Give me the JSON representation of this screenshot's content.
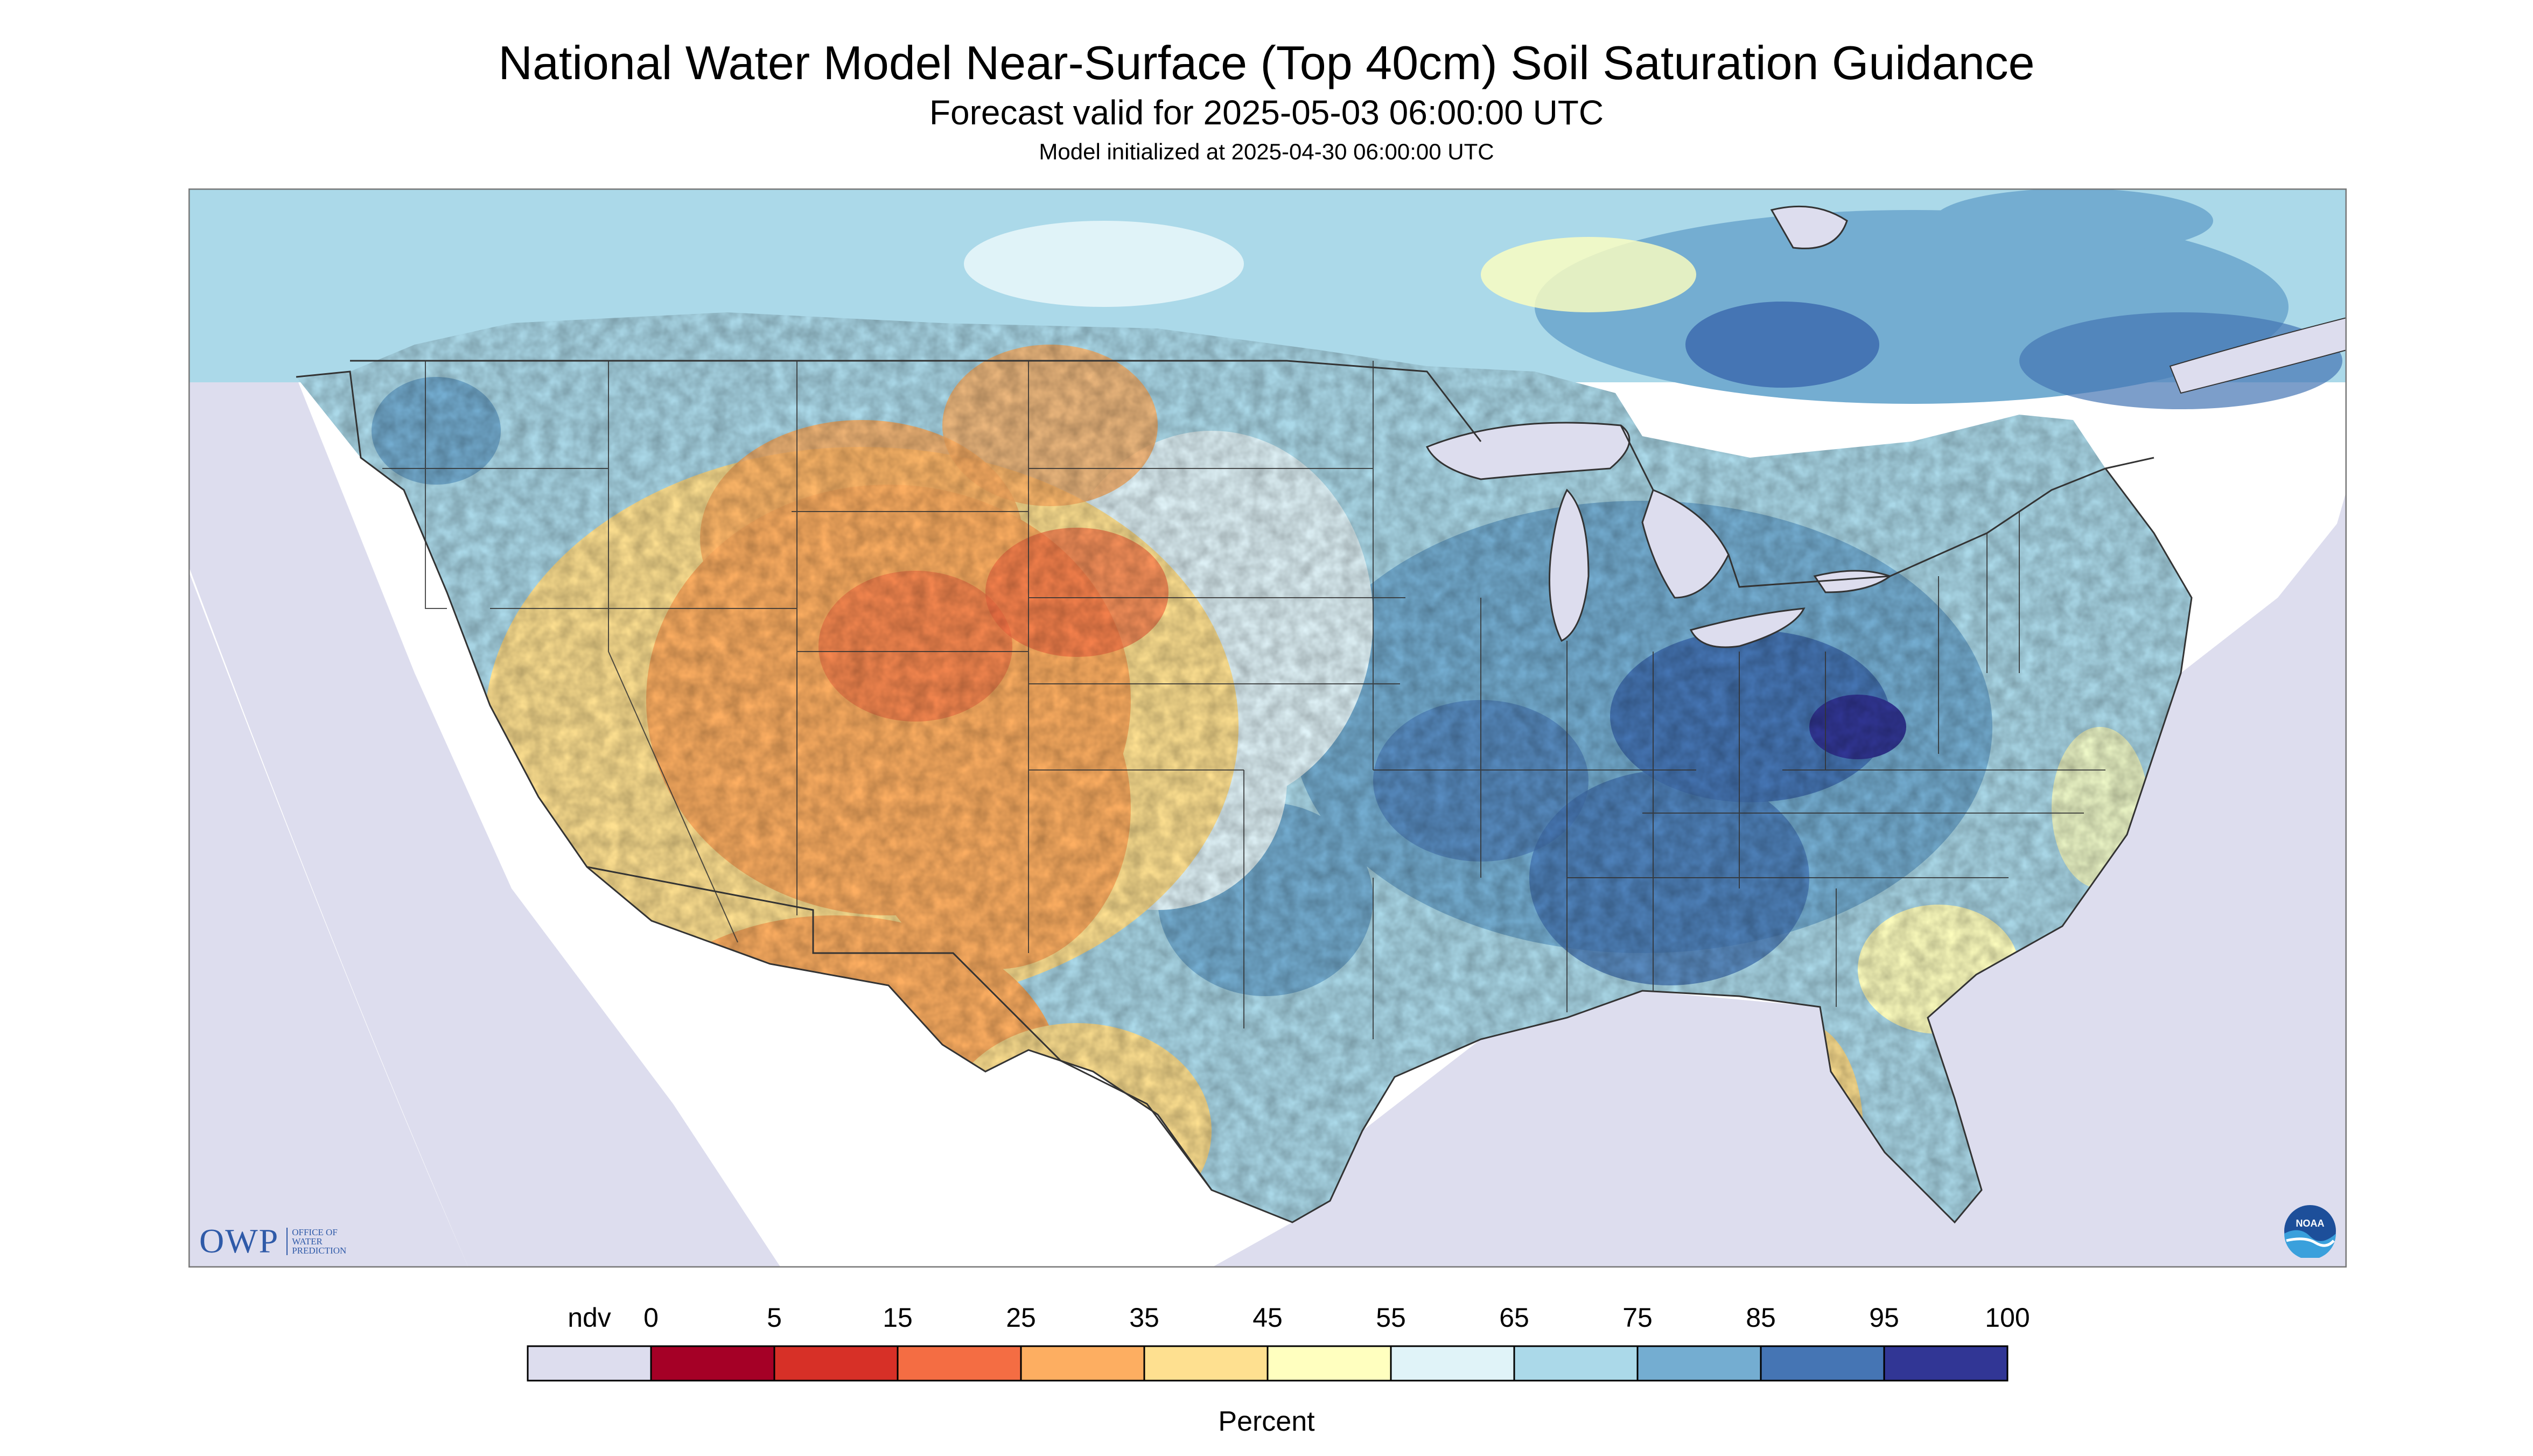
{
  "header": {
    "title": "National Water Model Near-Surface (Top 40cm) Soil Saturation Guidance",
    "subtitle": "Forecast valid for 2025-05-03 06:00:00 UTC",
    "init_line": "Model initialized at 2025-04-30 06:00:00 UTC"
  },
  "logos": {
    "owp_letters": "OWP",
    "owp_line1": "OFFICE OF",
    "owp_line2": "WATER",
    "owp_line3": "PREDICTION",
    "noaa_text": "NOAA"
  },
  "legend": {
    "ndv_label": "ndv",
    "ticks": [
      "0",
      "5",
      "15",
      "25",
      "35",
      "45",
      "55",
      "65",
      "75",
      "85",
      "95",
      "100"
    ],
    "colors": [
      "#ddddee",
      "#a50026",
      "#d73027",
      "#f46d43",
      "#fdae61",
      "#fee090",
      "#ffffbf",
      "#e0f3f8",
      "#abd9e9",
      "#74add1",
      "#4575b4",
      "#313695"
    ],
    "units": "Percent"
  },
  "map": {
    "projection": "Lambert conformal conic",
    "region": "Contiguous United States",
    "ndv_color": "#ddddee",
    "water_color": "#ddddee",
    "border_color": "#333333",
    "palette_note_colors": {
      "driest": "#a50026",
      "dry": "#f46d43",
      "moderate": "#fee090",
      "neutral": "#ffffbf",
      "moist": "#abd9e9",
      "wet": "#4575b4",
      "saturated": "#313695"
    }
  }
}
